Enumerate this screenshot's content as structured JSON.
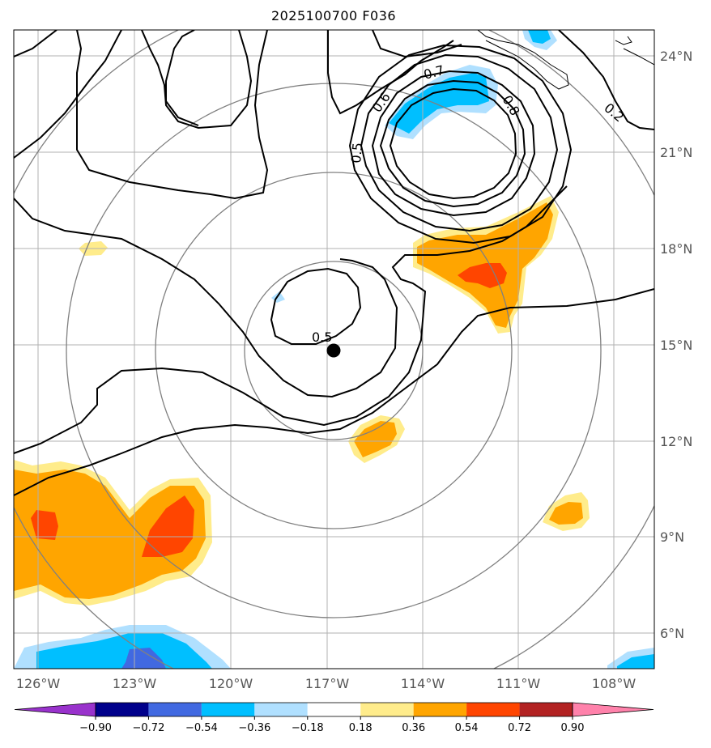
{
  "title": "2025100700 F036",
  "longitude_labels": [
    "126°W",
    "123°W",
    "120°W",
    "117°W",
    "114°W",
    "111°W",
    "108°W"
  ],
  "latitude_labels": [
    "24°N",
    "21°N",
    "18°N",
    "15°N",
    "12°N",
    "9°N",
    "6°N"
  ],
  "contour_labels": [
    "0.2",
    "0.5",
    "0.5",
    "0.6",
    "0.7",
    "0.8"
  ],
  "colorbar": {
    "tick_labels": [
      "−0.90",
      "−0.72",
      "−0.54",
      "−0.36",
      "−0.18",
      "0.18",
      "0.36",
      "0.54",
      "0.72",
      "0.90"
    ],
    "colors": [
      "#9932cc",
      "#00008b",
      "#4169e1",
      "#00bfff",
      "#b0e0ff",
      "#ffffff",
      "#ffec8b",
      "#ffa500",
      "#ff4500",
      "#b22222",
      "#ff82ab"
    ]
  },
  "storm_center": {
    "lon": -116.8,
    "lat": 14.8
  },
  "colors": {
    "range_rings": "#808080",
    "grid": "#b0b0b0",
    "contours": "#000000"
  }
}
